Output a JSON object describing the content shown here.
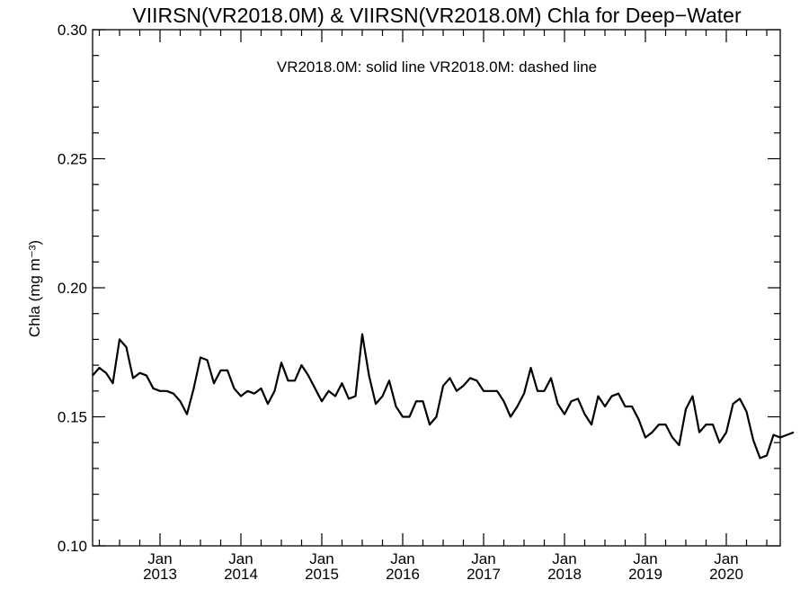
{
  "chart_data": {
    "type": "line",
    "title": "VIIRSN(VR2018.0M) & VIIRSN(VR2018.0M)  Chla for Deep−Water",
    "legend_text": "VR2018.0M: solid line   VR2018.0M: dashed line",
    "ylabel": "Chla (mg m⁻³)",
    "ylim": [
      0.1,
      0.3
    ],
    "yticks": [
      {
        "value": 0.1,
        "label": "0.10"
      },
      {
        "value": 0.15,
        "label": "0.15"
      },
      {
        "value": 0.2,
        "label": "0.20"
      },
      {
        "value": 0.25,
        "label": "0.25"
      },
      {
        "value": 0.3,
        "label": "0.30"
      }
    ],
    "xlim": [
      "2012-03",
      "2020-09"
    ],
    "xticks": [
      {
        "date": "2013-01",
        "label": "Jan",
        "year": "2013"
      },
      {
        "date": "2014-01",
        "label": "Jan",
        "year": "2014"
      },
      {
        "date": "2015-01",
        "label": "Jan",
        "year": "2015"
      },
      {
        "date": "2016-01",
        "label": "Jan",
        "year": "2016"
      },
      {
        "date": "2017-01",
        "label": "Jan",
        "year": "2017"
      },
      {
        "date": "2018-01",
        "label": "Jan",
        "year": "2018"
      },
      {
        "date": "2019-01",
        "label": "Jan",
        "year": "2019"
      },
      {
        "date": "2020-01",
        "label": "Jan",
        "year": "2020"
      }
    ],
    "series": [
      {
        "style": "solid",
        "color": "#000000",
        "points": [
          [
            "2012-03",
            0.166
          ],
          [
            "2012-04",
            0.169
          ],
          [
            "2012-05",
            0.167
          ],
          [
            "2012-06",
            0.163
          ],
          [
            "2012-07",
            0.18
          ],
          [
            "2012-08",
            0.177
          ],
          [
            "2012-09",
            0.165
          ],
          [
            "2012-10",
            0.167
          ],
          [
            "2012-11",
            0.166
          ],
          [
            "2012-12",
            0.161
          ],
          [
            "2013-01",
            0.16
          ],
          [
            "2013-02",
            0.16
          ],
          [
            "2013-03",
            0.159
          ],
          [
            "2013-04",
            0.156
          ],
          [
            "2013-05",
            0.151
          ],
          [
            "2013-06",
            0.161
          ],
          [
            "2013-07",
            0.173
          ],
          [
            "2013-08",
            0.172
          ],
          [
            "2013-09",
            0.163
          ],
          [
            "2013-10",
            0.168
          ],
          [
            "2013-11",
            0.168
          ],
          [
            "2013-12",
            0.161
          ],
          [
            "2014-01",
            0.158
          ],
          [
            "2014-02",
            0.16
          ],
          [
            "2014-03",
            0.159
          ],
          [
            "2014-04",
            0.161
          ],
          [
            "2014-05",
            0.155
          ],
          [
            "2014-06",
            0.16
          ],
          [
            "2014-07",
            0.171
          ],
          [
            "2014-08",
            0.164
          ],
          [
            "2014-09",
            0.164
          ],
          [
            "2014-10",
            0.17
          ],
          [
            "2014-11",
            0.166
          ],
          [
            "2014-12",
            0.161
          ],
          [
            "2015-01",
            0.156
          ],
          [
            "2015-02",
            0.16
          ],
          [
            "2015-03",
            0.158
          ],
          [
            "2015-04",
            0.163
          ],
          [
            "2015-05",
            0.157
          ],
          [
            "2015-06",
            0.158
          ],
          [
            "2015-07",
            0.182
          ],
          [
            "2015-08",
            0.166
          ],
          [
            "2015-09",
            0.155
          ],
          [
            "2015-10",
            0.158
          ],
          [
            "2015-11",
            0.164
          ],
          [
            "2015-12",
            0.154
          ],
          [
            "2016-01",
            0.15
          ],
          [
            "2016-02",
            0.15
          ],
          [
            "2016-03",
            0.156
          ],
          [
            "2016-04",
            0.156
          ],
          [
            "2016-05",
            0.147
          ],
          [
            "2016-06",
            0.15
          ],
          [
            "2016-07",
            0.162
          ],
          [
            "2016-08",
            0.165
          ],
          [
            "2016-09",
            0.16
          ],
          [
            "2016-10",
            0.162
          ],
          [
            "2016-11",
            0.165
          ],
          [
            "2016-12",
            0.164
          ],
          [
            "2017-01",
            0.16
          ],
          [
            "2017-02",
            0.16
          ],
          [
            "2017-03",
            0.16
          ],
          [
            "2017-04",
            0.156
          ],
          [
            "2017-05",
            0.15
          ],
          [
            "2017-06",
            0.154
          ],
          [
            "2017-07",
            0.159
          ],
          [
            "2017-08",
            0.169
          ],
          [
            "2017-09",
            0.16
          ],
          [
            "2017-10",
            0.16
          ],
          [
            "2017-11",
            0.165
          ],
          [
            "2017-12",
            0.155
          ],
          [
            "2018-01",
            0.151
          ],
          [
            "2018-02",
            0.156
          ],
          [
            "2018-03",
            0.157
          ],
          [
            "2018-04",
            0.151
          ],
          [
            "2018-05",
            0.147
          ],
          [
            "2018-06",
            0.158
          ],
          [
            "2018-07",
            0.154
          ],
          [
            "2018-08",
            0.158
          ],
          [
            "2018-09",
            0.159
          ],
          [
            "2018-10",
            0.154
          ],
          [
            "2018-11",
            0.154
          ],
          [
            "2018-12",
            0.149
          ],
          [
            "2019-01",
            0.142
          ],
          [
            "2019-02",
            0.144
          ],
          [
            "2019-03",
            0.147
          ],
          [
            "2019-04",
            0.147
          ],
          [
            "2019-05",
            0.142
          ],
          [
            "2019-06",
            0.139
          ],
          [
            "2019-07",
            0.153
          ],
          [
            "2019-08",
            0.158
          ],
          [
            "2019-09",
            0.144
          ],
          [
            "2019-10",
            0.147
          ],
          [
            "2019-11",
            0.147
          ],
          [
            "2019-12",
            0.14
          ],
          [
            "2020-01",
            0.144
          ],
          [
            "2020-02",
            0.155
          ],
          [
            "2020-03",
            0.157
          ],
          [
            "2020-04",
            0.152
          ],
          [
            "2020-05",
            0.141
          ],
          [
            "2020-06",
            0.134
          ],
          [
            "2020-07",
            0.135
          ],
          [
            "2020-08",
            0.143
          ],
          [
            "2020-09",
            0.142
          ],
          [
            "2020-10",
            0.143
          ],
          [
            "2020-11",
            0.144
          ]
        ]
      }
    ],
    "grid": false
  }
}
